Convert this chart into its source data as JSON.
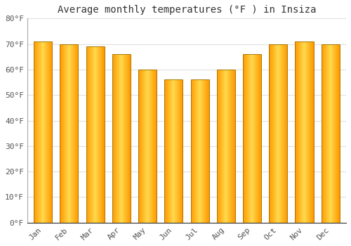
{
  "months": [
    "Jan",
    "Feb",
    "Mar",
    "Apr",
    "May",
    "Jun",
    "Jul",
    "Aug",
    "Sep",
    "Oct",
    "Nov",
    "Dec"
  ],
  "values": [
    71,
    70,
    69,
    66,
    60,
    56,
    56,
    60,
    66,
    70,
    71,
    70
  ],
  "bar_color_left": "#FFA500",
  "bar_color_center": "#FFD060",
  "bar_edge_color": "#CC8800",
  "title": "Average monthly temperatures (°F ) in Insiza",
  "ylim": [
    0,
    80
  ],
  "yticks": [
    0,
    10,
    20,
    30,
    40,
    50,
    60,
    70,
    80
  ],
  "ytick_labels": [
    "0°F",
    "10°F",
    "20°F",
    "30°F",
    "40°F",
    "50°F",
    "60°F",
    "70°F",
    "80°F"
  ],
  "background_color": "#FFFFFF",
  "grid_color": "#E0E0E0",
  "title_fontsize": 10,
  "tick_fontsize": 8
}
